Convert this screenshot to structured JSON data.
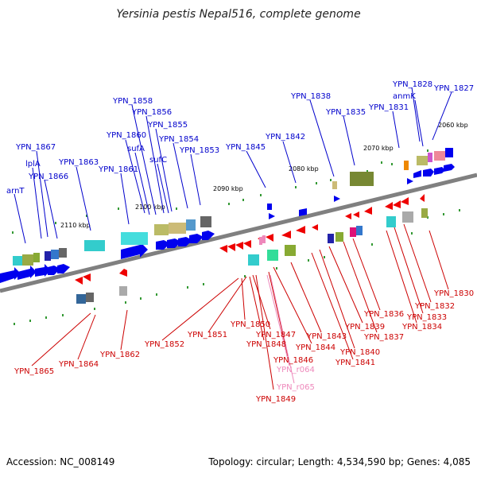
{
  "title": "Yersinia pestis Nepal516, complete genome",
  "footer": {
    "accession": "Accession: NC_008149",
    "summary": "Topology: circular; Length: 4,534,590 bp; Genes: 4,085"
  },
  "colors": {
    "forward_label": "#0000cc",
    "reverse_label": "#cc0000",
    "rna_label": "#ee88bb",
    "forward_arrow": "#0000ee",
    "reverse_arrow": "#ee0000",
    "backbone": "#808080",
    "tick": "#339933"
  },
  "scale_labels": [
    "2060 kbp",
    "2070 kbp",
    "2080 kbp",
    "2090 kbp",
    "2100 kbp",
    "2110 kbp"
  ],
  "top_labels": [
    "arnT",
    "lplA",
    "YPN_1867",
    "YPN_1866",
    "YPN_1863",
    "YPN_1861",
    "YPN_1860",
    "sufA",
    "YPN_1858",
    "YPN_1856",
    "YPN_1855",
    "sufC",
    "YPN_1854",
    "YPN_1853",
    "YPN_1845",
    "YPN_1842",
    "YPN_1838",
    "YPN_1835",
    "YPN_1831",
    "anmK",
    "YPN_1828",
    "YPN_1827"
  ],
  "bottom_labels": [
    "YPN_1865",
    "YPN_1864",
    "YPN_1862",
    "YPN_1852",
    "YPN_1851",
    "YPN_1850",
    "YPN_1848",
    "YPN_1847",
    "YPN_1846",
    "YPN_1844",
    "YPN_1843",
    "YPN_1841",
    "YPN_1840",
    "YPN_1839",
    "YPN_1837",
    "YPN_1836",
    "YPN_1834",
    "YPN_1833",
    "YPN_1832",
    "YPN_1830",
    "YPN_1849"
  ],
  "rna_labels": [
    "YPN_r064",
    "YPN_r065"
  ],
  "icon": "genome-map"
}
